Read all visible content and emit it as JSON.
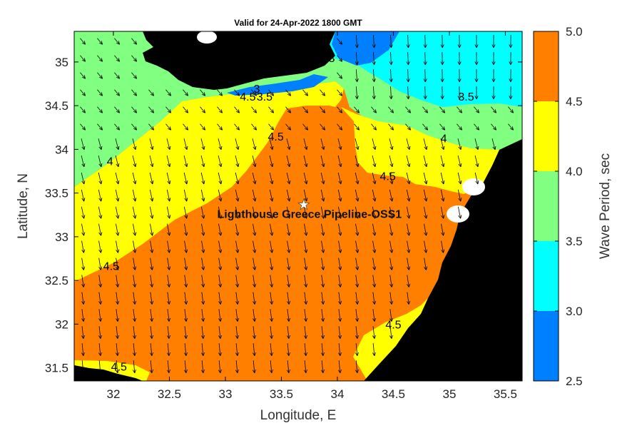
{
  "title": "Valid for 24-Apr-2022 1800 GMT",
  "x_axis": {
    "label": "Longitude, E",
    "ticks": [
      {
        "value": 32,
        "label": "32"
      },
      {
        "value": 32.5,
        "label": "32.5"
      },
      {
        "value": 33,
        "label": "33"
      },
      {
        "value": 33.5,
        "label": "33.5"
      },
      {
        "value": 34,
        "label": "34"
      },
      {
        "value": 34.5,
        "label": "34.5"
      },
      {
        "value": 35,
        "label": "35"
      },
      {
        "value": 35.5,
        "label": "35.5"
      }
    ],
    "range": [
      31.65,
      35.65
    ]
  },
  "y_axis": {
    "label": "Latitude, N",
    "ticks": [
      {
        "value": 35,
        "label": "35"
      },
      {
        "value": 34.5,
        "label": "34.5"
      },
      {
        "value": 34,
        "label": "34"
      },
      {
        "value": 33.5,
        "label": "33.5"
      },
      {
        "value": 33,
        "label": "33"
      },
      {
        "value": 32.5,
        "label": "32.5"
      },
      {
        "value": 32,
        "label": "32"
      },
      {
        "value": 31.5,
        "label": "31.5"
      }
    ],
    "range": [
      31.35,
      35.35
    ]
  },
  "colorbar": {
    "label": "Wave Period, sec",
    "levels": [
      {
        "from": 4.5,
        "to": 5.0,
        "color": "#ff8000"
      },
      {
        "from": 4.0,
        "to": 4.5,
        "color": "#ffff00"
      },
      {
        "from": 3.5,
        "to": 4.0,
        "color": "#80ff80"
      },
      {
        "from": 3.0,
        "to": 3.5,
        "color": "#00ffff"
      },
      {
        "from": 2.5,
        "to": 3.0,
        "color": "#0080ff"
      }
    ],
    "ticks": [
      "5.0",
      "4.5",
      "4.0",
      "3.5",
      "3.0",
      "2.5"
    ]
  },
  "colors": {
    "land": "#000000",
    "period_4_5_plus": "#ff8000",
    "period_4_to_4_5": "#ffff00",
    "period_3_5_to_4": "#80ff80",
    "period_3_to_3_5": "#00ffff",
    "period_below_3": "#0080ff",
    "no_data": "#ffffff"
  },
  "contour_labels": [
    {
      "text": "3",
      "lon": 33.95,
      "lat": 35.0
    },
    {
      "text": "3",
      "lon": 33.28,
      "lat": 34.65
    },
    {
      "text": "3.5",
      "lon": 35.15,
      "lat": 34.56
    },
    {
      "text": "4.5",
      "lon": 33.2,
      "lat": 34.56
    },
    {
      "text": "3.5",
      "lon": 33.35,
      "lat": 34.56
    },
    {
      "text": "4.5",
      "lon": 33.45,
      "lat": 34.1
    },
    {
      "text": "4",
      "lon": 34.95,
      "lat": 34.08
    },
    {
      "text": "4",
      "lon": 31.97,
      "lat": 33.82
    },
    {
      "text": "4.5",
      "lon": 34.45,
      "lat": 33.65
    },
    {
      "text": "4.5",
      "lon": 31.98,
      "lat": 32.62
    },
    {
      "text": "4.5",
      "lon": 34.5,
      "lat": 31.95
    },
    {
      "text": "4.5",
      "lon": 32.05,
      "lat": 31.47
    }
  ],
  "station": {
    "name": "Lighthouse Greece Pipeline-OSS1",
    "lon": 33.7,
    "lat": 33.37,
    "marker": "white-star"
  },
  "wave_direction": "southeast"
}
